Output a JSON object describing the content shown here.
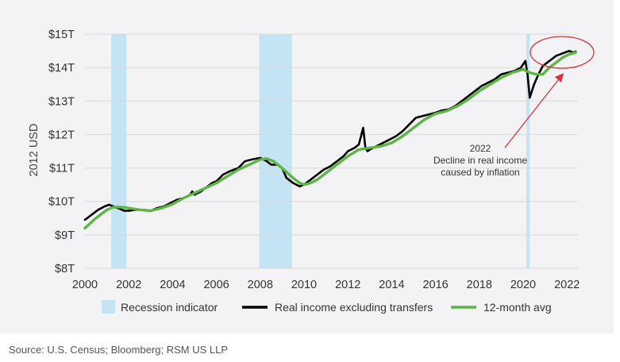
{
  "chart_data": {
    "type": "line",
    "title": "",
    "xlabel": "",
    "ylabel": "2012 USD",
    "xlim": [
      2000,
      2022.5
    ],
    "ylim": [
      8,
      15
    ],
    "x_ticks": [
      2000,
      2002,
      2004,
      2006,
      2008,
      2010,
      2012,
      2014,
      2016,
      2018,
      2020,
      2022
    ],
    "x_tick_labels": [
      "2000",
      "2002",
      "2004",
      "2006",
      "2008",
      "2010",
      "2012",
      "2014",
      "2016",
      "2018",
      "2020",
      "2022"
    ],
    "y_ticks": [
      8,
      9,
      10,
      11,
      12,
      13,
      14,
      15
    ],
    "y_tick_labels": [
      "$8T",
      "$9T",
      "$10T",
      "$11T",
      "$12T",
      "$13T",
      "$14T",
      "$15T"
    ],
    "grid": "horizontal",
    "recessions": [
      {
        "start": 2001.2,
        "end": 2001.9
      },
      {
        "start": 2007.95,
        "end": 2009.45
      },
      {
        "start": 2020.15,
        "end": 2020.3
      }
    ],
    "series": [
      {
        "name": "Real income excluding transfers",
        "color": "#000000",
        "x": [
          2000.0,
          2000.3,
          2000.6,
          2000.9,
          2001.1,
          2001.3,
          2001.5,
          2001.8,
          2002.0,
          2002.3,
          2002.7,
          2003.0,
          2003.3,
          2003.6,
          2003.9,
          2004.2,
          2004.5,
          2004.8,
          2004.9,
          2005.0,
          2005.3,
          2005.6,
          2005.8,
          2006.0,
          2006.3,
          2006.6,
          2007.0,
          2007.3,
          2007.6,
          2008.0,
          2008.3,
          2008.5,
          2008.8,
          2009.0,
          2009.2,
          2009.5,
          2009.8,
          2010.0,
          2010.3,
          2010.6,
          2010.9,
          2011.2,
          2011.5,
          2011.8,
          2012.0,
          2012.3,
          2012.5,
          2012.7,
          2012.8,
          2012.9,
          2013.0,
          2013.3,
          2013.6,
          2013.9,
          2014.2,
          2014.5,
          2014.8,
          2015.1,
          2015.4,
          2015.7,
          2016.0,
          2016.3,
          2016.6,
          2016.9,
          2017.2,
          2017.5,
          2017.8,
          2018.1,
          2018.4,
          2018.7,
          2019.0,
          2019.3,
          2019.6,
          2019.9,
          2020.1,
          2020.2,
          2020.3,
          2020.5,
          2020.7,
          2020.9,
          2021.1,
          2021.3,
          2021.5,
          2021.7,
          2021.9,
          2022.1,
          2022.3,
          2022.4
        ],
        "values": [
          9.45,
          9.6,
          9.75,
          9.85,
          9.9,
          9.85,
          9.8,
          9.72,
          9.72,
          9.75,
          9.75,
          9.72,
          9.8,
          9.85,
          9.95,
          10.05,
          10.1,
          10.2,
          10.3,
          10.2,
          10.3,
          10.45,
          10.55,
          10.6,
          10.8,
          10.9,
          11.0,
          11.2,
          11.25,
          11.3,
          11.2,
          11.1,
          11.1,
          11.0,
          10.7,
          10.55,
          10.45,
          10.5,
          10.65,
          10.8,
          10.95,
          11.05,
          11.2,
          11.35,
          11.5,
          11.6,
          11.7,
          12.2,
          11.6,
          11.5,
          11.55,
          11.65,
          11.75,
          11.85,
          11.95,
          12.1,
          12.3,
          12.5,
          12.55,
          12.6,
          12.65,
          12.72,
          12.75,
          12.85,
          13.0,
          13.15,
          13.3,
          13.45,
          13.55,
          13.65,
          13.8,
          13.85,
          13.9,
          14.0,
          14.2,
          13.8,
          13.1,
          13.5,
          13.8,
          14.05,
          14.15,
          14.25,
          14.35,
          14.4,
          14.45,
          14.5,
          14.45,
          14.48
        ]
      },
      {
        "name": "12-month avg",
        "color": "#5cb545",
        "x": [
          2000.0,
          2000.5,
          2001.0,
          2001.3,
          2001.7,
          2002.0,
          2002.5,
          2003.0,
          2003.5,
          2004.0,
          2004.5,
          2005.0,
          2005.5,
          2006.0,
          2006.5,
          2007.0,
          2007.5,
          2008.0,
          2008.3,
          2008.6,
          2008.9,
          2009.2,
          2009.5,
          2009.8,
          2010.0,
          2010.3,
          2010.6,
          2011.0,
          2011.5,
          2012.0,
          2012.5,
          2013.0,
          2013.5,
          2014.0,
          2014.5,
          2015.0,
          2015.5,
          2016.0,
          2016.5,
          2017.0,
          2017.5,
          2018.0,
          2018.5,
          2019.0,
          2019.5,
          2020.0,
          2020.3,
          2020.6,
          2020.9,
          2021.2,
          2021.5,
          2021.8,
          2022.1,
          2022.4
        ],
        "values": [
          9.2,
          9.5,
          9.75,
          9.83,
          9.83,
          9.8,
          9.75,
          9.72,
          9.8,
          9.92,
          10.1,
          10.25,
          10.4,
          10.55,
          10.75,
          10.95,
          11.1,
          11.25,
          11.28,
          11.2,
          11.05,
          10.88,
          10.7,
          10.55,
          10.5,
          10.55,
          10.65,
          10.85,
          11.1,
          11.35,
          11.55,
          11.6,
          11.65,
          11.75,
          11.95,
          12.2,
          12.45,
          12.62,
          12.7,
          12.85,
          13.05,
          13.3,
          13.5,
          13.7,
          13.85,
          13.95,
          13.85,
          13.8,
          13.8,
          14.0,
          14.15,
          14.3,
          14.4,
          14.45
        ]
      }
    ],
    "annotations": [
      {
        "x": 2020.8,
        "y": 11.1,
        "lines": [
          "2022",
          "Decline in real income",
          "caused by inflation"
        ]
      }
    ],
    "legend": {
      "placement": "bottom",
      "items": [
        {
          "label": "Recession indicator",
          "kind": "patch",
          "color": "#c5e4f3"
        },
        {
          "label": "Real income excluding transfers",
          "kind": "line",
          "color": "#000000"
        },
        {
          "label": "12-month avg",
          "kind": "line",
          "color": "#5cb545"
        }
      ]
    },
    "colors": {
      "recession": "#c5e4f3",
      "grid": "#d9d9d9",
      "annotation": "#d9313f"
    }
  },
  "footer": {
    "source": "Source: U.S. Census; Bloomberg; RSM US LLP"
  }
}
